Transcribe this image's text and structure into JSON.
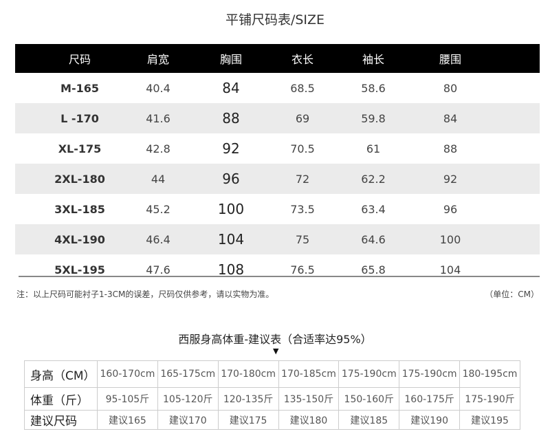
{
  "title": "平铺尺码表/SIZE",
  "size_table": {
    "headers": [
      "尺码",
      "肩宽",
      "胸围",
      "衣长",
      "袖长",
      "腰围"
    ],
    "rows": [
      [
        "M-165",
        "40.4",
        "84",
        "68.5",
        "58.6",
        "80"
      ],
      [
        "L -170",
        "41.6",
        "88",
        "69",
        "59.8",
        "84"
      ],
      [
        "XL-175",
        "42.8",
        "92",
        "70.5",
        "61",
        "88"
      ],
      [
        "2XL-180",
        "44",
        "96",
        "72",
        "62.2",
        "92"
      ],
      [
        "3XL-185",
        "45.2",
        "100",
        "73.5",
        "63.4",
        "96"
      ],
      [
        "4XL-190",
        "46.4",
        "104",
        "75",
        "64.6",
        "100"
      ],
      [
        "5XL-195",
        "47.6",
        "108",
        "76.5",
        "65.8",
        "104"
      ]
    ]
  },
  "note": "注：以上尺码可能衬子1-3CM的误差，尺码仅供参考，请以实物为准。",
  "unit": "（单位：CM）",
  "recommend_title": "西服身高体重-建议表（合适率达95%）",
  "arrow": "▼",
  "recommend_table": {
    "rows": [
      [
        "身高（CM）",
        "160-170cm",
        "165-175cm",
        "170-180cm",
        "170-185cm",
        "175-190cm",
        "175-190cm",
        "180-195cm"
      ],
      [
        "体重（斤）",
        "95-105斤",
        "105-120斤",
        "120-135斤",
        "135-150斤",
        "150-160斤",
        "160-175斤",
        "175-190斤"
      ],
      [
        "建议尺码",
        "建议165",
        "建议170",
        "建议175",
        "建议180",
        "建议185",
        "建议190",
        "建议195"
      ]
    ]
  }
}
